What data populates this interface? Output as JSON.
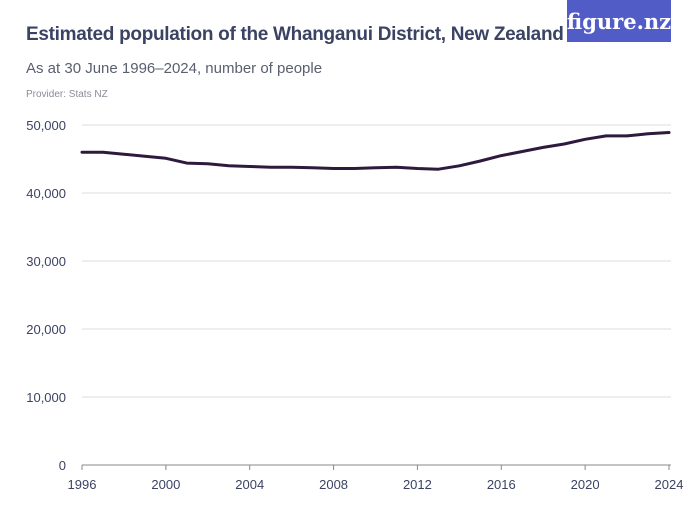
{
  "header": {
    "title": "Estimated population of the Whanganui District, New Zealand",
    "subtitle": "As at 30 June 1996–2024, number of people",
    "provider": "Provider: Stats NZ",
    "logo": "figure.nz"
  },
  "colors": {
    "line": "#2e1a3d",
    "grid": "#dcdcdc",
    "logo_bg": "#525cc7",
    "text": "#3b4363"
  },
  "chart_data": {
    "type": "line",
    "title": "Estimated population of the Whanganui District, New Zealand",
    "subtitle": "As at 30 June 1996–2024, number of people",
    "xlabel": "",
    "ylabel": "",
    "xlim": [
      1996,
      2024
    ],
    "ylim": [
      0,
      50000
    ],
    "x_ticks": [
      1996,
      2000,
      2004,
      2008,
      2012,
      2016,
      2020,
      2024
    ],
    "y_ticks": [
      0,
      10000,
      20000,
      30000,
      40000,
      50000
    ],
    "y_tick_labels": [
      "0",
      "10,000",
      "20,000",
      "30,000",
      "40,000",
      "50,000"
    ],
    "grid": "horizontal",
    "x": [
      1996,
      1997,
      1998,
      1999,
      2000,
      2001,
      2002,
      2003,
      2004,
      2005,
      2006,
      2007,
      2008,
      2009,
      2010,
      2011,
      2012,
      2013,
      2014,
      2015,
      2016,
      2017,
      2018,
      2019,
      2020,
      2021,
      2022,
      2023,
      2024
    ],
    "values": [
      46000,
      46000,
      45700,
      45400,
      45100,
      44400,
      44300,
      44000,
      43900,
      43800,
      43800,
      43700,
      43600,
      43600,
      43700,
      43800,
      43600,
      43500,
      44000,
      44700,
      45500,
      46100,
      46700,
      47200,
      47900,
      48400,
      48400,
      48700,
      48900
    ]
  }
}
